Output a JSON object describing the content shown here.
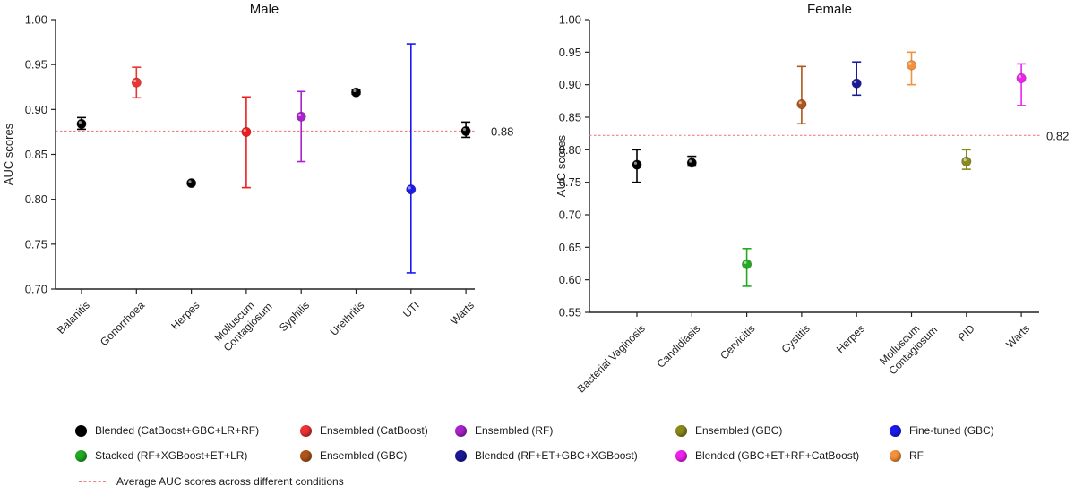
{
  "chart_data": [
    {
      "type": "scatter",
      "title": "Male",
      "xlabel": "",
      "ylabel": "AUC scores",
      "ylim": [
        0.7,
        1.0
      ],
      "yticks": [
        "0.70",
        "0.75",
        "0.80",
        "0.85",
        "0.90",
        "0.95",
        "1.00"
      ],
      "grid": false,
      "categories": [
        "Balanitis",
        "Gonorrhoea",
        "Herpes",
        "Molluscum Contagiosum",
        "Syphilis",
        "Urethritis",
        "UTI",
        "Warts"
      ],
      "points": [
        {
          "label": "Balanitis",
          "value": 0.884,
          "low": 0.878,
          "high": 0.891,
          "color": "#000000"
        },
        {
          "label": "Gonorrhoea",
          "value": 0.93,
          "low": 0.913,
          "high": 0.947,
          "color": "#ee3333"
        },
        {
          "label": "Herpes",
          "value": 0.818,
          "low": 0.818,
          "high": 0.818,
          "color": "#000000"
        },
        {
          "label": "Molluscum Contagiosum",
          "value": 0.875,
          "low": 0.813,
          "high": 0.914,
          "color": "#ee1c1c"
        },
        {
          "label": "Syphilis",
          "value": 0.892,
          "low": 0.842,
          "high": 0.92,
          "color": "#aa22cc"
        },
        {
          "label": "Urethritis",
          "value": 0.919,
          "low": 0.917,
          "high": 0.922,
          "color": "#000000"
        },
        {
          "label": "UTI",
          "value": 0.811,
          "low": 0.718,
          "high": 0.973,
          "color": "#1a1aee"
        },
        {
          "label": "Warts",
          "value": 0.876,
          "low": 0.869,
          "high": 0.886,
          "color": "#000000"
        }
      ],
      "reference_line": {
        "value": 0.876,
        "label": "0.88"
      }
    },
    {
      "type": "scatter",
      "title": "Female",
      "xlabel": "",
      "ylabel": "AUC scores",
      "ylim": [
        0.55,
        1.0
      ],
      "yticks": [
        "0.55",
        "0.60",
        "0.65",
        "0.70",
        "0.75",
        "0.80",
        "0.85",
        "0.90",
        "0.95",
        "1.00"
      ],
      "grid": false,
      "categories": [
        "Bacterial Vaginosis",
        "Candidiasis",
        "Cervicitis",
        "Cystitis",
        "Herpes",
        "Molluscum Contagiosum",
        "PID",
        "Warts"
      ],
      "points": [
        {
          "label": "Bacterial Vaginosis",
          "value": 0.777,
          "low": 0.75,
          "high": 0.8,
          "color": "#000000"
        },
        {
          "label": "Candidiasis",
          "value": 0.78,
          "low": 0.775,
          "high": 0.79,
          "color": "#000000"
        },
        {
          "label": "Cervicitis",
          "value": 0.624,
          "low": 0.59,
          "high": 0.648,
          "color": "#22aa22"
        },
        {
          "label": "Cystitis",
          "value": 0.87,
          "low": 0.84,
          "high": 0.928,
          "color": "#b0551a"
        },
        {
          "label": "Herpes",
          "value": 0.902,
          "low": 0.884,
          "high": 0.935,
          "color": "#1a1a99"
        },
        {
          "label": "Molluscum Contagiosum",
          "value": 0.93,
          "low": 0.9,
          "high": 0.95,
          "color": "#f5913a"
        },
        {
          "label": "PID",
          "value": 0.782,
          "low": 0.77,
          "high": 0.8,
          "color": "#8a8a1a"
        },
        {
          "label": "Warts",
          "value": 0.91,
          "low": 0.868,
          "high": 0.932,
          "color": "#ee22ee"
        }
      ],
      "reference_line": {
        "value": 0.822,
        "label": "0.82"
      }
    }
  ],
  "legend": {
    "items": [
      {
        "label": "Blended (CatBoost+GBC+LR+RF)",
        "color": "#000000"
      },
      {
        "label": "Ensembled (CatBoost)",
        "color": "#ee3333"
      },
      {
        "label": "Ensembled (RF)",
        "color": "#aa22cc"
      },
      {
        "label": "Ensembled (GBC)",
        "color": "#8a8a1a"
      },
      {
        "label": "Fine-tuned (GBC)",
        "color": "#1a1aee"
      },
      {
        "label": "Stacked (RF+XGBoost+ET+LR)",
        "color": "#22aa22"
      },
      {
        "label": "Ensembled (GBC)",
        "color": "#b0551a"
      },
      {
        "label": "Blended (RF+ET+GBC+XGBoost)",
        "color": "#1a1a99"
      },
      {
        "label": "Blended (GBC+ET+RF+CatBoost)",
        "color": "#ee22ee"
      },
      {
        "label": "RF",
        "color": "#f5913a"
      }
    ],
    "line_label": "Average AUC scores across different conditions",
    "line_color": "#f08080"
  }
}
